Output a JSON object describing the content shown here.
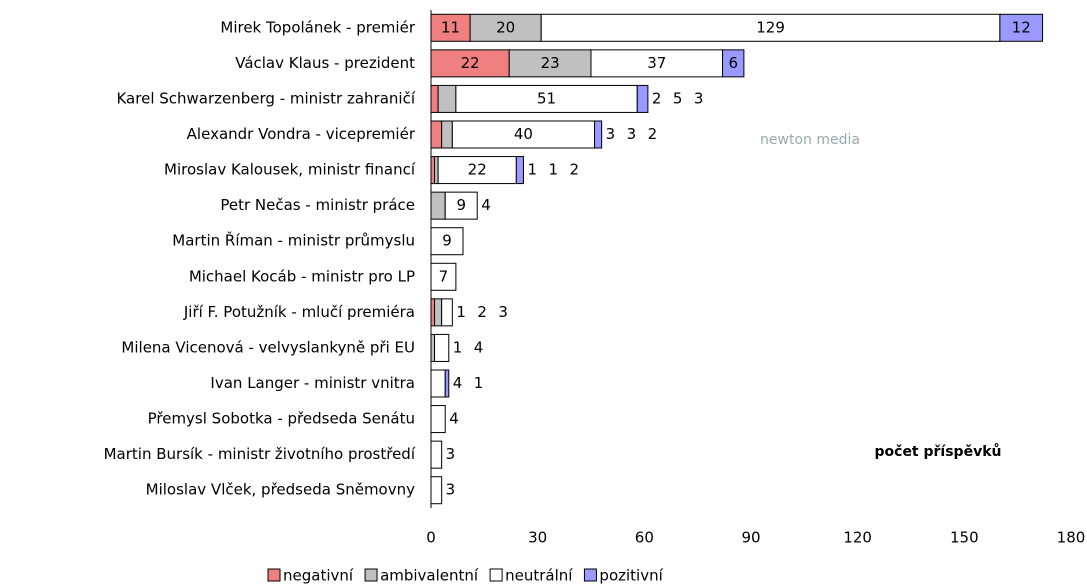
{
  "chart_data": {
    "type": "stacked-barh",
    "categories": [
      "Mirek Topolánek - premiér",
      "Václav Klaus - prezident",
      "Karel Schwarzenberg - ministr zahraničí",
      "Alexandr Vondra - vicepremiér",
      "Miroslav Kalousek, ministr financí",
      "Petr Nečas - ministr práce",
      "Martin Říman - ministr průmyslu",
      "Michael Kocáb - ministr pro LP",
      "Jiří F. Potužník - mlučí premiéra",
      "Milena Vicenová - velvyslankyně při EU",
      "Ivan Langer - ministr vnitra",
      "Přemysl Sobotka - předseda Senátu",
      "Martin Bursík - ministr životního prostředí",
      "Miloslav Vlček, předseda Sněmovny"
    ],
    "series": [
      {
        "name": "negativní",
        "color": "#f08080",
        "values": [
          11,
          22,
          2,
          3,
          1,
          null,
          null,
          null,
          1,
          null,
          null,
          null,
          null,
          null
        ]
      },
      {
        "name": "ambivalentní",
        "color": "#c0c0c0",
        "values": [
          20,
          23,
          5,
          3,
          1,
          4,
          null,
          null,
          2,
          1,
          null,
          null,
          null,
          null
        ]
      },
      {
        "name": "neutrální",
        "color": "#ffffff",
        "values": [
          129,
          37,
          51,
          40,
          22,
          9,
          9,
          7,
          3,
          4,
          4,
          4,
          3,
          3
        ]
      },
      {
        "name": "pozitivní",
        "color": "#9999ff",
        "values": [
          12,
          6,
          3,
          2,
          2,
          null,
          null,
          null,
          null,
          null,
          1,
          null,
          null,
          null
        ]
      }
    ],
    "xlim": [
      0,
      180
    ],
    "xticks": [
      0,
      30,
      60,
      90,
      120,
      150,
      180
    ],
    "annotation": "počet příspěvků",
    "watermark": "newton media",
    "legend": "bottom"
  }
}
